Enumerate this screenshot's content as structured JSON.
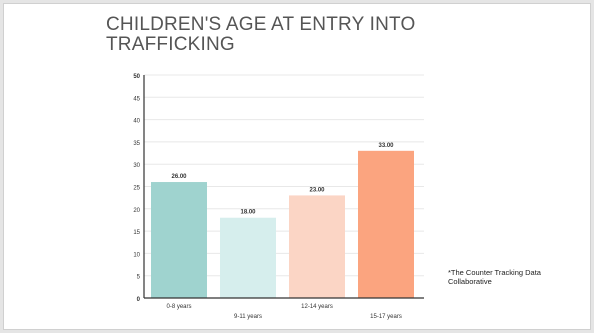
{
  "slide": {
    "title": "CHILDREN'S AGE AT ENTRY INTO TRAFFICKING",
    "source_note": "*The Counter Tracking Data Collaborative"
  },
  "chart_data": {
    "type": "bar",
    "categories": [
      "0-8 years",
      "9-11 years",
      "12-14 years",
      "15-17 years"
    ],
    "values": [
      26,
      18,
      23,
      33
    ],
    "value_labels": [
      "26.00",
      "18.00",
      "23.00",
      "33.00"
    ],
    "ylim": [
      0,
      50
    ],
    "yticks": [
      0,
      5,
      10,
      15,
      20,
      25,
      30,
      35,
      40,
      45,
      50
    ],
    "grid": true,
    "legend": "none",
    "bar_colors": [
      "#9fd3cf",
      "#d6eeed",
      "#fbd5c5",
      "#fba47f"
    ],
    "colors": {
      "axis": "#333333",
      "grid": "#e8e8e8",
      "tick_text": "#333333"
    }
  }
}
